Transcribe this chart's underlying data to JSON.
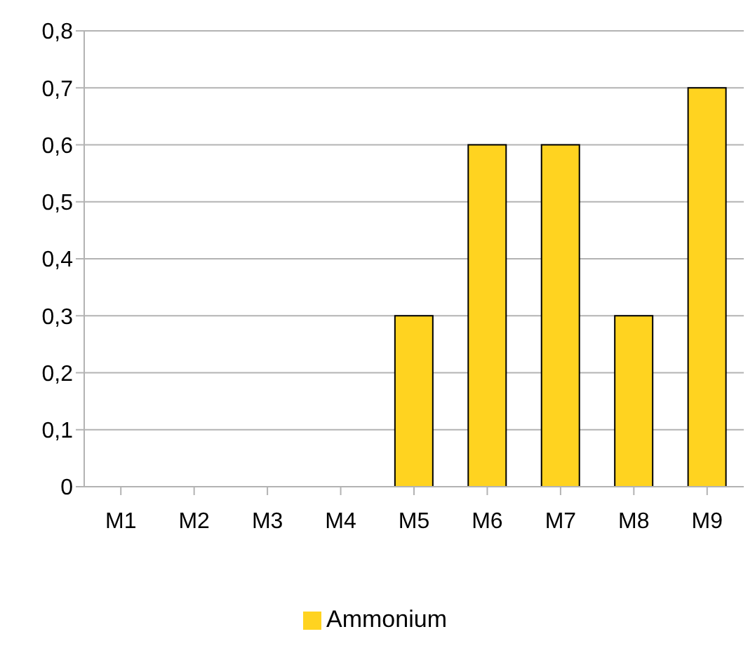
{
  "chart_data": {
    "type": "bar",
    "categories": [
      "M1",
      "M2",
      "M3",
      "M4",
      "M5",
      "M6",
      "M7",
      "M8",
      "M9"
    ],
    "series": [
      {
        "name": "Ammonium",
        "color": "#ffd320",
        "values": [
          0,
          0,
          0,
          0,
          0.3,
          0.6,
          0.6,
          0.3,
          0.7
        ]
      }
    ],
    "ylim": [
      0,
      0.8
    ],
    "yticks": [
      0,
      {
        "value": 0.1,
        "label": "0,1"
      },
      {
        "value": 0.2,
        "label": "0,2"
      },
      {
        "value": 0.3,
        "label": "0,3"
      },
      {
        "value": 0.4,
        "label": "0,4"
      },
      {
        "value": 0.5,
        "label": "0,5"
      },
      {
        "value": 0.6,
        "label": "0,6"
      },
      {
        "value": 0.7,
        "label": "0,7"
      },
      {
        "value": 0.8,
        "label": "0,8"
      }
    ],
    "grid": "y",
    "legend": "bottom"
  }
}
